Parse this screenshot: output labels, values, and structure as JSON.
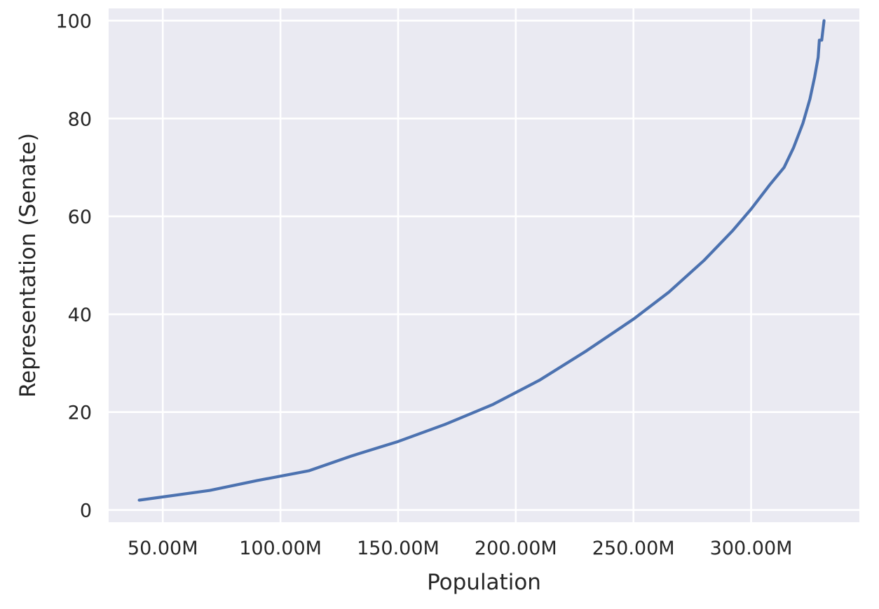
{
  "chart_data": {
    "type": "line",
    "title": "",
    "xlabel": "Population",
    "ylabel": "Representation (Senate)",
    "xlim": [
      27000000,
      346000000
    ],
    "ylim": [
      -2.5,
      102.5
    ],
    "x_ticks": [
      50000000,
      100000000,
      150000000,
      200000000,
      250000000,
      300000000
    ],
    "x_tick_labels": [
      "50.00M",
      "100.00M",
      "150.00M",
      "200.00M",
      "250.00M",
      "300.00M"
    ],
    "y_ticks": [
      0,
      20,
      40,
      60,
      80,
      100
    ],
    "y_tick_labels": [
      "0",
      "20",
      "40",
      "60",
      "80",
      "100"
    ],
    "grid": true,
    "colors": {
      "background": "#eaeaf2",
      "grid": "#ffffff",
      "line": "#4c72b0"
    },
    "series": [
      {
        "name": "",
        "x": [
          40000000,
          70000000,
          90000000,
          112000000,
          130000000,
          150000000,
          170000000,
          190000000,
          210000000,
          230000000,
          250000000,
          265000000,
          280000000,
          292000000,
          300000000,
          308000000,
          314000000,
          318000000,
          322000000,
          325000000,
          327000000,
          328500000,
          329000000,
          330000000,
          331000000
        ],
        "y": [
          2,
          4,
          6,
          8,
          11,
          14,
          17.5,
          21.5,
          26.5,
          32.5,
          39,
          44.5,
          51,
          57,
          61.5,
          66.5,
          70,
          74,
          79,
          84,
          88.5,
          92.5,
          96,
          96,
          100
        ]
      }
    ]
  }
}
